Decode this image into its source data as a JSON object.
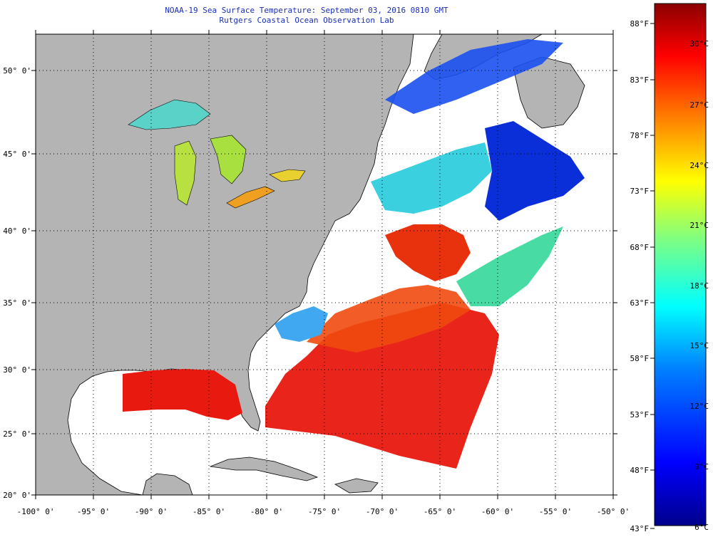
{
  "title": {
    "line1": "NOAA-19 Sea Surface Temperature:  September 03, 2016 0810 GMT",
    "line2": "Rutgers Coastal Ocean Observation Lab"
  },
  "axes": {
    "lat_labels": [
      "50° 0'",
      "45° 0'",
      "40° 0'",
      "35° 0'",
      "30° 0'",
      "25° 0'",
      "20° 0'"
    ],
    "lon_labels": [
      "-100° 0'",
      "-95° 0'",
      "-90° 0'",
      "-85° 0'",
      "-80° 0'",
      "-75° 0'",
      "-70° 0'",
      "-65° 0'",
      "-60° 0'",
      "-55° 0'",
      "-50° 0'"
    ],
    "lat_values": [
      50,
      45,
      40,
      35,
      30,
      25,
      20
    ],
    "lon_values": [
      -100,
      -95,
      -90,
      -85,
      -80,
      -75,
      -70,
      -65,
      -60,
      -55,
      -50
    ],
    "lon_range": [
      -100,
      -50
    ],
    "lat_range": [
      20,
      52.3
    ]
  },
  "colorbar": {
    "fahrenheit_labels": [
      "88°F",
      "83°F",
      "78°F",
      "73°F",
      "68°F",
      "63°F",
      "58°F",
      "53°F",
      "48°F",
      "43°F"
    ],
    "celsius_labels": [
      "30°C",
      "27°C",
      "24°C",
      "21°C",
      "18°C",
      "15°C",
      "12°C",
      "9°C",
      "6°C"
    ],
    "colors": [
      "#00008b",
      "#0000ff",
      "#0080ff",
      "#00ffff",
      "#80ff80",
      "#ffff00",
      "#ff8000",
      "#ff0000",
      "#8b0000"
    ]
  },
  "colors": {
    "land": "#b4b4b4",
    "no_data": "#ffffff",
    "title_text": "#1a2fb8",
    "grid": "#000000"
  }
}
